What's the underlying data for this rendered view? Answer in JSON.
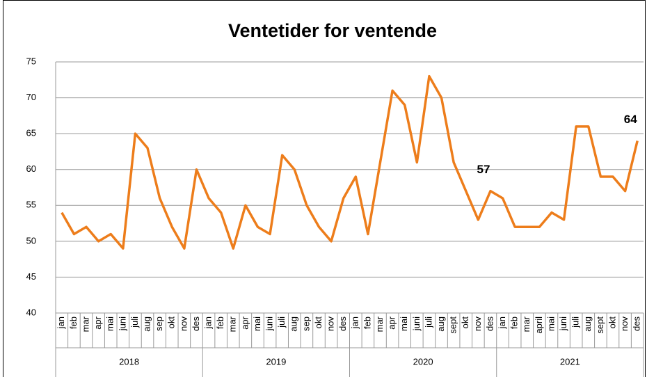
{
  "chart_data": {
    "type": "line",
    "title": "Ventetider for ventende",
    "categories": [
      "jan",
      "feb",
      "mar",
      "apr",
      "mai",
      "juni",
      "juli",
      "aug",
      "sep",
      "okt",
      "nov",
      "des",
      "jan",
      "feb",
      "mar",
      "apr",
      "mai",
      "juni",
      "juli",
      "aug",
      "sep",
      "okt",
      "nov",
      "des",
      "jan",
      "feb",
      "mar",
      "apr",
      "mai",
      "juni",
      "juli",
      "aug",
      "sept",
      "okt",
      "nov",
      "des",
      "jan",
      "feb",
      "mar",
      "april",
      "mai",
      "juni",
      "juli",
      "aug",
      "sept",
      "okt",
      "nov",
      "des"
    ],
    "years": [
      "2018",
      "2019",
      "2020",
      "2021"
    ],
    "series": [
      {
        "name": "Ventetider",
        "color": "#ed7d1b",
        "values": [
          54,
          51,
          52,
          50,
          51,
          49,
          65,
          63,
          56,
          52,
          49,
          60,
          56,
          54,
          49,
          55,
          52,
          51,
          62,
          60,
          55,
          52,
          50,
          56,
          59,
          51,
          61,
          71,
          69,
          61,
          73,
          70,
          61,
          57,
          53,
          57,
          56,
          52,
          52,
          52,
          54,
          53,
          66,
          66,
          59,
          59,
          57,
          64
        ]
      }
    ],
    "data_labels": [
      35,
      47
    ],
    "ylim": [
      40,
      75
    ],
    "yticks": [
      40,
      45,
      50,
      55,
      60,
      65,
      70,
      75
    ],
    "grid": true
  }
}
